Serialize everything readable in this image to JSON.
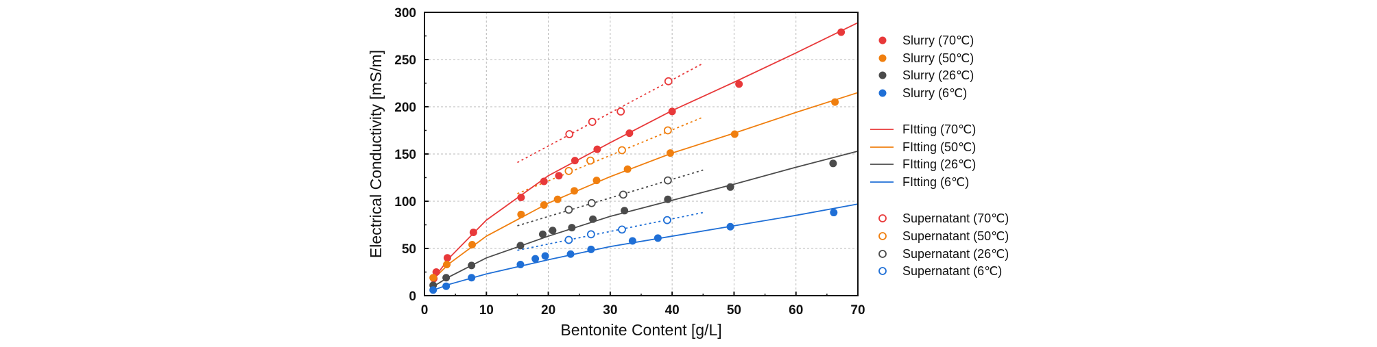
{
  "chart_data": {
    "type": "scatter",
    "xlabel": "Bentonite Content [g/L]",
    "ylabel": "Electrical Conductivity [mS/m]",
    "xlim": [
      0,
      70
    ],
    "ylim": [
      0,
      300
    ],
    "xticks": [
      "0",
      "10",
      "20",
      "30",
      "40",
      "50",
      "60",
      "70"
    ],
    "yticks": [
      "0",
      "50",
      "100",
      "150",
      "200",
      "250",
      "300"
    ],
    "grid": true,
    "legend_position": "right",
    "colors": {
      "70C": "#e8393a",
      "50C": "#f07f0f",
      "26C": "#4b4b4b",
      "6C": "#1f6fd6"
    },
    "series": [
      {
        "name": "Slurry (70℃)",
        "kind": "filled",
        "color": "#e8393a",
        "x": [
          1.5,
          1.9,
          3.7,
          7.9,
          15.6,
          19.3,
          21.7,
          24.3,
          27.9,
          33.1,
          40.0,
          50.8,
          67.3
        ],
        "y": [
          18,
          25,
          40,
          67,
          104,
          121,
          127,
          143,
          155,
          172,
          195,
          224,
          279
        ]
      },
      {
        "name": "Slurry (50℃)",
        "kind": "filled",
        "color": "#f07f0f",
        "x": [
          1.4,
          3.6,
          7.7,
          15.6,
          19.3,
          21.5,
          24.2,
          27.8,
          32.8,
          39.7,
          50.1,
          66.3
        ],
        "y": [
          19,
          33,
          54,
          86,
          96,
          102,
          111,
          122,
          134,
          151,
          171,
          205
        ]
      },
      {
        "name": "Slurry (26℃)",
        "kind": "filled",
        "color": "#4b4b4b",
        "x": [
          1.4,
          3.5,
          7.6,
          15.5,
          19.1,
          20.7,
          23.8,
          27.2,
          32.3,
          39.3,
          49.4,
          66.0
        ],
        "y": [
          11,
          19,
          32,
          53,
          65,
          69,
          72,
          81,
          90,
          102,
          115,
          140
        ],
        "_": ""
      },
      {
        "name": "Slurry (6℃)",
        "kind": "filled",
        "color": "#1f6fd6",
        "x": [
          1.4,
          3.5,
          7.6,
          15.5,
          17.9,
          19.5,
          23.6,
          26.9,
          33.6,
          37.7,
          49.4,
          66.1
        ],
        "y": [
          6,
          10,
          19,
          33,
          39,
          42,
          44,
          49,
          58,
          61,
          73,
          88
        ]
      },
      {
        "name": "Supernatant (70℃)",
        "kind": "open",
        "color": "#e8393a",
        "x": [
          23.4,
          27.1,
          31.7,
          39.4
        ],
        "y": [
          171,
          184,
          195,
          227
        ]
      },
      {
        "name": "Supernatant (50℃)",
        "kind": "open",
        "color": "#f07f0f",
        "x": [
          23.3,
          26.8,
          31.9,
          39.3
        ],
        "y": [
          132,
          143,
          154,
          175
        ]
      },
      {
        "name": "Supernatant (26℃)",
        "kind": "open",
        "color": "#4b4b4b",
        "x": [
          23.3,
          27.0,
          32.1,
          39.3
        ],
        "y": [
          91,
          98,
          107,
          122
        ]
      },
      {
        "name": "Supernatant (6℃)",
        "kind": "open",
        "color": "#1f6fd6",
        "x": [
          23.3,
          26.9,
          31.9,
          39.2
        ],
        "y": [
          59,
          65,
          70,
          80
        ]
      }
    ],
    "fits": [
      {
        "name": "FItting (70℃)",
        "color": "#e8393a",
        "x": [
          1.5,
          4,
          10,
          20,
          30,
          40,
          50,
          60,
          70
        ],
        "y": [
          18,
          40,
          80,
          127,
          162,
          196,
          226,
          257,
          289
        ]
      },
      {
        "name": "FItting (50℃)",
        "color": "#f07f0f",
        "x": [
          1.5,
          4,
          10,
          20,
          30,
          40,
          50,
          60,
          70
        ],
        "y": [
          18,
          34,
          63,
          98,
          126,
          151,
          172,
          194,
          215
        ]
      },
      {
        "name": "FItting (26℃)",
        "color": "#4b4b4b",
        "x": [
          1.5,
          4,
          10,
          20,
          30,
          40,
          50,
          60,
          70
        ],
        "y": [
          10,
          20,
          40,
          63,
          84,
          101,
          118,
          136,
          153
        ]
      },
      {
        "name": "FItting (6℃)",
        "color": "#1f6fd6",
        "x": [
          1.5,
          4,
          10,
          20,
          30,
          40,
          50,
          60,
          70
        ],
        "y": [
          6,
          12,
          23,
          38,
          52,
          63,
          74,
          85,
          97
        ]
      }
    ],
    "supernatant_trends": [
      {
        "color": "#e8393a",
        "x": [
          15,
          45
        ],
        "y": [
          141,
          246
        ]
      },
      {
        "color": "#f07f0f",
        "x": [
          15,
          45
        ],
        "y": [
          108,
          189
        ]
      },
      {
        "color": "#4b4b4b",
        "x": [
          15,
          45
        ],
        "y": [
          74,
          133
        ]
      },
      {
        "color": "#1f6fd6",
        "x": [
          15,
          45
        ],
        "y": [
          48,
          88
        ]
      }
    ]
  }
}
